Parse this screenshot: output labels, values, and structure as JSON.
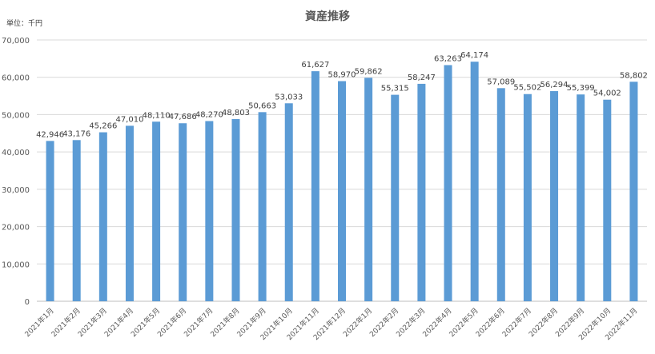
{
  "chart_data": {
    "type": "bar",
    "title": "資産推移",
    "unit_label": "単位：千円",
    "categories": [
      "2021年1月",
      "2021年2月",
      "2021年3月",
      "2021年4月",
      "2021年5月",
      "2021年6月",
      "2021年7月",
      "2021年8月",
      "2021年9月",
      "2021年10月",
      "2021年11月",
      "2021年12月",
      "2022年1月",
      "2022年2月",
      "2022年3月",
      "2022年4月",
      "2022年5月",
      "2022年6月",
      "2022年7月",
      "2022年8月",
      "2022年9月",
      "2022年10月",
      "2022年11月"
    ],
    "values": [
      42946,
      43176,
      45266,
      47010,
      48110,
      47686,
      48270,
      48803,
      50663,
      53033,
      61627,
      58970,
      59862,
      55315,
      58247,
      63263,
      64174,
      57089,
      55502,
      56294,
      55399,
      54002,
      58802
    ],
    "data_labels": [
      "42,946",
      "43,176",
      "45,266",
      "47,010",
      "48,110",
      "47,686",
      "48,270",
      "48,803",
      "50,663",
      "53,033",
      "61,627",
      "58,970",
      "59,862",
      "55,315",
      "58,247",
      "63,263",
      "64,174",
      "57,089",
      "55,502",
      "56,294",
      "55,399",
      "54,002",
      "58,802"
    ],
    "yticks": [
      "0",
      "10,000",
      "20,000",
      "30,000",
      "40,000",
      "50,000",
      "60,000",
      "70,000"
    ],
    "ylim": [
      0,
      70000
    ],
    "grid": true,
    "legend": "none",
    "bar_color": "#5b9bd5"
  }
}
